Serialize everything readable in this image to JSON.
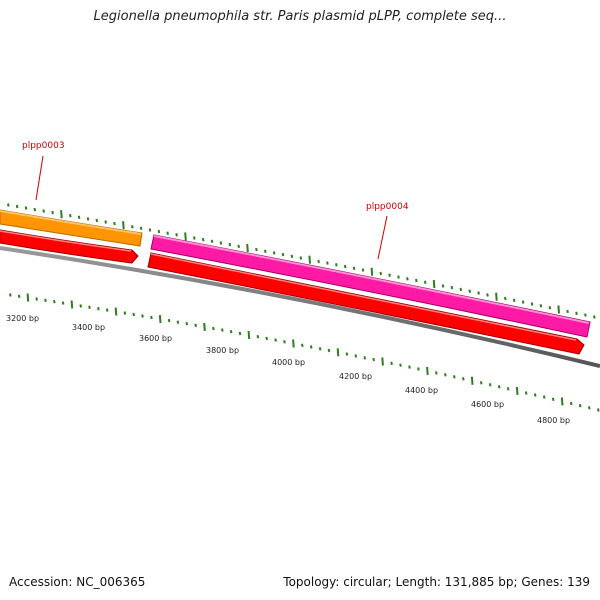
{
  "title": "Legionella pneumophila str. Paris plasmid pLPP, complete seq...",
  "accession": "Accession: NC_006365",
  "summary": "Topology: circular; Length: 131,885 bp; Genes: 139",
  "colors": {
    "tick": "#2e7d1e",
    "backbone": "#777777",
    "gene_orange": "#ff9500",
    "gene_magenta": "#ff1aa6",
    "gene_red": "#ff0000",
    "label_red": "#cc0000"
  },
  "bp_labels": [
    "3200 bp",
    "3400 bp",
    "3600 bp",
    "3800 bp",
    "4000 bp",
    "4200 bp",
    "4400 bp",
    "4600 bp",
    "4800 bp"
  ],
  "genes": [
    {
      "name": "plpp0003",
      "color": "orange"
    },
    {
      "name": "plpp0004",
      "color": "magenta"
    }
  ]
}
